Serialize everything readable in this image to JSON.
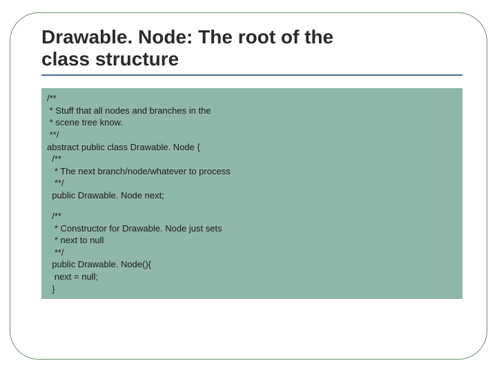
{
  "title_line1": "Drawable. Node: The root of the",
  "title_line2": "class structure",
  "colors": {
    "border": "#6b8e6b",
    "title_underline": "#4a6b8a",
    "code_bg": "#8fb8a8",
    "text": "#1a1a1a"
  },
  "code": {
    "l01": "/**",
    "l02": " * Stuff that all nodes and branches in the",
    "l03": " * scene tree know.",
    "l04": " **/",
    "l05": "abstract public class Drawable. Node {",
    "l06": "  /**",
    "l07": "   * The next branch/node/whatever to process",
    "l08": "   **/",
    "l09": "  public Drawable. Node next;",
    "l10": "  /**",
    "l11": "   * Constructor for Drawable. Node just sets",
    "l12": "   * next to null",
    "l13": "   **/",
    "l14": "  public Drawable. Node(){",
    "l15": "   next = null;",
    "l16": "  }"
  }
}
